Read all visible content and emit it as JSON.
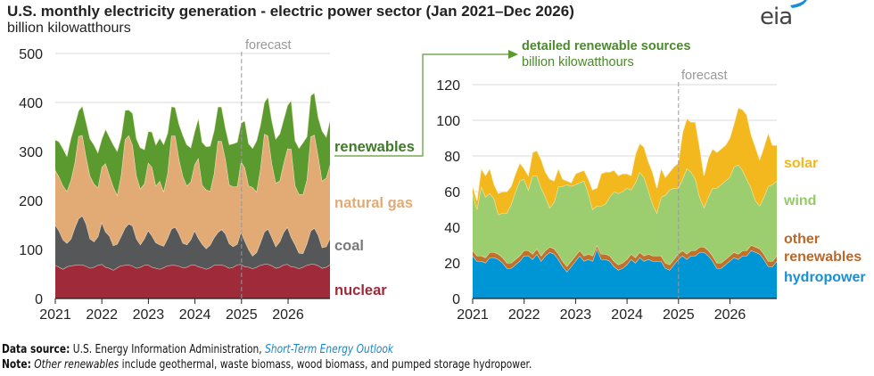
{
  "header": {
    "title": "U.S. monthly electricity generation - electric power sector (Jan 2021–Dec 2026)",
    "subtitle": "billion kilowatthours",
    "logo": "eia"
  },
  "footer": {
    "source_label": "Data source:",
    "source_text": " U.S. Energy Information Administration, ",
    "source_link": "Short-Term Energy Outlook",
    "note_label": "Note:",
    "note_italic": "Other renewables",
    "note_text": " include geothermal, waste biomass, wood biomass, and pumped storage hydropower."
  },
  "connector": {
    "title": "detailed renewable sources",
    "subtitle": "billion kilowatthours"
  },
  "chart_data": [
    {
      "type": "area",
      "stacked": true,
      "title": "U.S. monthly electricity generation - electric power sector (Jan 2021–Dec 2026)",
      "ylabel": "billion kilowatthours",
      "xlabel": "",
      "x_start": "2021-01",
      "x_end": "2026-12",
      "frequency": "monthly",
      "ylim": [
        0,
        500
      ],
      "yticks": [
        0,
        100,
        200,
        300,
        400,
        500
      ],
      "xticks": [
        "2021",
        "2022",
        "2023",
        "2024",
        "2025",
        "2026"
      ],
      "grid": true,
      "forecast_start": "2025-01",
      "forecast_label": "forecast",
      "legend": "right-inline",
      "series": [
        {
          "name": "nuclear",
          "color": "#9e2a3a",
          "label_color": "#9e2a3a",
          "values": [
            68,
            64,
            60,
            65,
            67,
            68,
            69,
            69,
            66,
            62,
            64,
            68,
            70,
            64,
            62,
            58,
            63,
            67,
            68,
            69,
            66,
            62,
            64,
            68,
            69,
            64,
            62,
            60,
            63,
            67,
            68,
            68,
            66,
            63,
            64,
            68,
            69,
            65,
            63,
            60,
            63,
            68,
            69,
            69,
            66,
            62,
            64,
            69,
            70,
            65,
            64,
            61,
            64,
            68,
            70,
            70,
            67,
            62,
            64,
            69,
            70,
            65,
            64,
            61,
            64,
            68,
            70,
            70,
            67,
            62,
            64,
            69
          ]
        },
        {
          "name": "coal",
          "color": "#555759",
          "label_color": "#7a7a7a",
          "values": [
            82,
            74,
            60,
            48,
            54,
            76,
            94,
            100,
            86,
            60,
            52,
            58,
            86,
            72,
            66,
            50,
            48,
            60,
            76,
            84,
            82,
            60,
            46,
            54,
            70,
            64,
            52,
            50,
            44,
            56,
            74,
            78,
            66,
            50,
            46,
            52,
            70,
            58,
            48,
            42,
            46,
            56,
            66,
            72,
            66,
            50,
            42,
            42,
            66,
            52,
            36,
            26,
            30,
            46,
            66,
            72,
            58,
            44,
            52,
            66,
            76,
            60,
            46,
            32,
            28,
            44,
            68,
            74,
            62,
            42,
            42,
            54
          ]
        },
        {
          "name": "natural gas",
          "color": "#e2aa74",
          "label_color": "#e2aa74",
          "values": [
            112,
            110,
            110,
            106,
            120,
            132,
            168,
            164,
            136,
            128,
            118,
            100,
            112,
            140,
            124,
            120,
            100,
            124,
            180,
            180,
            164,
            128,
            114,
            112,
            138,
            140,
            116,
            130,
            112,
            132,
            190,
            186,
            152,
            136,
            120,
            118,
            134,
            164,
            120,
            120,
            110,
            130,
            186,
            180,
            152,
            120,
            122,
            118,
            144,
            150,
            130,
            140,
            124,
            150,
            200,
            190,
            150,
            130,
            124,
            140,
            160,
            180,
            120,
            120,
            120,
            130,
            192,
            190,
            160,
            136,
            140,
            150
          ]
        },
        {
          "name": "renewables",
          "color": "#5b9a2e",
          "label_color": "#3f7a26",
          "values": [
            62,
            72,
            76,
            72,
            86,
            78,
            52,
            60,
            72,
            76,
            80,
            72,
            58,
            70,
            78,
            86,
            90,
            78,
            60,
            52,
            66,
            76,
            84,
            70,
            64,
            72,
            84,
            88,
            96,
            82,
            60,
            58,
            72,
            84,
            84,
            70,
            68,
            82,
            88,
            88,
            92,
            88,
            70,
            70,
            64,
            82,
            88,
            90,
            78,
            96,
            86,
            80,
            104,
            90,
            64,
            80,
            88,
            90,
            96,
            90,
            88,
            100,
            92,
            94,
            106,
            88,
            84,
            86,
            80,
            102,
            84,
            92
          ]
        }
      ]
    },
    {
      "type": "area",
      "stacked": true,
      "title": "detailed renewable sources",
      "ylabel": "billion kilowatthours",
      "xlabel": "",
      "x_start": "2021-01",
      "x_end": "2026-12",
      "frequency": "monthly",
      "ylim": [
        0,
        120
      ],
      "yticks": [
        0,
        20,
        40,
        60,
        80,
        100,
        120
      ],
      "xticks": [
        "2021",
        "2022",
        "2023",
        "2024",
        "2025",
        "2026"
      ],
      "grid": true,
      "forecast_start": "2025-01",
      "forecast_label": "forecast",
      "legend": "right-inline",
      "series": [
        {
          "name": "hydropower",
          "color": "#0096d6",
          "label_color": "#1a8fd0",
          "values": [
            24,
            21,
            21,
            20,
            23,
            23,
            22,
            20,
            17,
            17,
            19,
            21,
            24,
            24,
            22,
            25,
            21,
            24,
            26,
            25,
            22,
            18,
            15,
            18,
            21,
            24,
            21,
            22,
            21,
            28,
            22,
            22,
            21,
            18,
            16,
            17,
            19,
            22,
            20,
            23,
            21,
            22,
            21,
            21,
            21,
            17,
            16,
            19,
            22,
            24,
            22,
            24,
            24,
            26,
            26,
            24,
            21,
            17,
            17,
            19,
            21,
            23,
            22,
            24,
            24,
            27,
            26,
            25,
            22,
            18,
            18,
            21
          ]
        },
        {
          "name": "other renewables",
          "color": "#c0722c",
          "label_color": "#b8682a",
          "values": [
            3,
            3,
            3,
            3,
            3,
            3,
            3,
            3,
            3,
            3,
            3,
            3,
            3,
            3,
            3,
            3,
            3,
            3,
            3,
            3,
            3,
            3,
            3,
            3,
            3,
            3,
            3,
            3,
            3,
            2,
            3,
            3,
            3,
            3,
            3,
            3,
            3,
            3,
            3,
            3,
            3,
            3,
            3,
            3,
            3,
            3,
            3,
            3,
            3,
            3,
            3,
            3,
            3,
            3,
            3,
            3,
            3,
            3,
            3,
            3,
            3,
            3,
            3,
            3,
            3,
            3,
            3,
            3,
            3,
            3,
            3,
            3
          ]
        },
        {
          "name": "wind",
          "color": "#9ccd6e",
          "label_color": "#96c96a",
          "values": [
            32,
            26,
            39,
            34,
            33,
            30,
            22,
            25,
            28,
            33,
            38,
            42,
            40,
            34,
            44,
            41,
            38,
            30,
            22,
            26,
            38,
            42,
            46,
            42,
            40,
            38,
            42,
            34,
            26,
            22,
            27,
            28,
            33,
            39,
            40,
            40,
            40,
            36,
            42,
            45,
            44,
            36,
            29,
            24,
            33,
            38,
            42,
            40,
            37,
            40,
            48,
            44,
            40,
            28,
            22,
            30,
            38,
            42,
            44,
            44,
            44,
            48,
            50,
            45,
            40,
            32,
            26,
            24,
            32,
            42,
            43,
            42
          ]
        },
        {
          "name": "solar",
          "color": "#f2b81d",
          "label_color": "#f2b81d",
          "values": [
            4,
            5,
            10,
            12,
            14,
            8,
            12,
            12,
            12,
            10,
            10,
            10,
            6,
            8,
            13,
            14,
            16,
            14,
            16,
            12,
            10,
            4,
            2,
            2,
            6,
            6,
            6,
            8,
            11,
            10,
            18,
            18,
            14,
            12,
            10,
            10,
            8,
            8,
            16,
            16,
            17,
            16,
            18,
            14,
            16,
            10,
            10,
            12,
            14,
            26,
            28,
            28,
            32,
            28,
            18,
            22,
            22,
            20,
            20,
            20,
            22,
            24,
            32,
            34,
            36,
            30,
            30,
            26,
            28,
            30,
            22,
            20
          ]
        }
      ]
    }
  ]
}
